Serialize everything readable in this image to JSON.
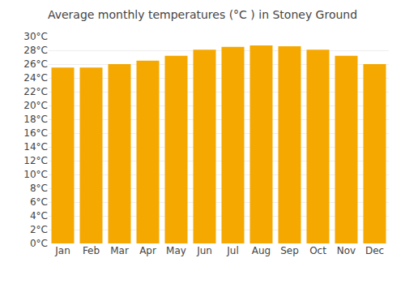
{
  "chart_data": {
    "type": "bar",
    "title": "Average monthly temperatures (°C ) in Stoney Ground",
    "categories": [
      "Jan",
      "Feb",
      "Mar",
      "Apr",
      "May",
      "Jun",
      "Jul",
      "Aug",
      "Sep",
      "Oct",
      "Nov",
      "Dec"
    ],
    "values": [
      25.5,
      25.5,
      26.0,
      26.5,
      27.2,
      28.1,
      28.5,
      28.7,
      28.6,
      28.1,
      27.2,
      26.0
    ],
    "color": "#F5A800",
    "ylim": [
      0,
      30
    ],
    "yticks": [
      {
        "value": 0,
        "label": "0°C"
      },
      {
        "value": 2,
        "label": "2°C"
      },
      {
        "value": 4,
        "label": "4°C"
      },
      {
        "value": 6,
        "label": "6°C"
      },
      {
        "value": 8,
        "label": "8°C"
      },
      {
        "value": 10,
        "label": "10°C"
      },
      {
        "value": 12,
        "label": "12°C"
      },
      {
        "value": 14,
        "label": "14°C"
      },
      {
        "value": 16,
        "label": "16°C"
      },
      {
        "value": 18,
        "label": "18°C"
      },
      {
        "value": 20,
        "label": "20°C"
      },
      {
        "value": 22,
        "label": "22°C"
      },
      {
        "value": 24,
        "label": "24°C"
      },
      {
        "value": 26,
        "label": "26°C"
      },
      {
        "value": 28,
        "label": "28°C"
      },
      {
        "value": 30,
        "label": "30°C"
      }
    ],
    "grid": true
  }
}
